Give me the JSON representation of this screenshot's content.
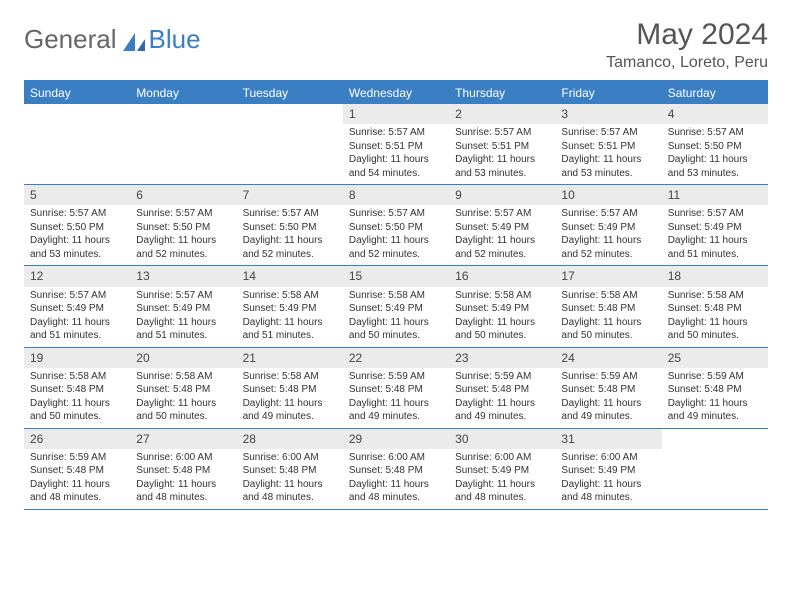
{
  "logo": {
    "text1": "General",
    "text2": "Blue"
  },
  "title": "May 2024",
  "location": "Tamanco, Loreto, Peru",
  "colors": {
    "accent": "#3a7fc4",
    "daynum_bg": "#ebebeb",
    "text": "#333333",
    "header_text": "#555555",
    "white": "#ffffff"
  },
  "weekdays": [
    "Sunday",
    "Monday",
    "Tuesday",
    "Wednesday",
    "Thursday",
    "Friday",
    "Saturday"
  ],
  "weeks": [
    [
      {
        "n": "",
        "sr": "",
        "ss": "",
        "dl": ""
      },
      {
        "n": "",
        "sr": "",
        "ss": "",
        "dl": ""
      },
      {
        "n": "",
        "sr": "",
        "ss": "",
        "dl": ""
      },
      {
        "n": "1",
        "sr": "Sunrise: 5:57 AM",
        "ss": "Sunset: 5:51 PM",
        "dl": "Daylight: 11 hours and 54 minutes."
      },
      {
        "n": "2",
        "sr": "Sunrise: 5:57 AM",
        "ss": "Sunset: 5:51 PM",
        "dl": "Daylight: 11 hours and 53 minutes."
      },
      {
        "n": "3",
        "sr": "Sunrise: 5:57 AM",
        "ss": "Sunset: 5:51 PM",
        "dl": "Daylight: 11 hours and 53 minutes."
      },
      {
        "n": "4",
        "sr": "Sunrise: 5:57 AM",
        "ss": "Sunset: 5:50 PM",
        "dl": "Daylight: 11 hours and 53 minutes."
      }
    ],
    [
      {
        "n": "5",
        "sr": "Sunrise: 5:57 AM",
        "ss": "Sunset: 5:50 PM",
        "dl": "Daylight: 11 hours and 53 minutes."
      },
      {
        "n": "6",
        "sr": "Sunrise: 5:57 AM",
        "ss": "Sunset: 5:50 PM",
        "dl": "Daylight: 11 hours and 52 minutes."
      },
      {
        "n": "7",
        "sr": "Sunrise: 5:57 AM",
        "ss": "Sunset: 5:50 PM",
        "dl": "Daylight: 11 hours and 52 minutes."
      },
      {
        "n": "8",
        "sr": "Sunrise: 5:57 AM",
        "ss": "Sunset: 5:50 PM",
        "dl": "Daylight: 11 hours and 52 minutes."
      },
      {
        "n": "9",
        "sr": "Sunrise: 5:57 AM",
        "ss": "Sunset: 5:49 PM",
        "dl": "Daylight: 11 hours and 52 minutes."
      },
      {
        "n": "10",
        "sr": "Sunrise: 5:57 AM",
        "ss": "Sunset: 5:49 PM",
        "dl": "Daylight: 11 hours and 52 minutes."
      },
      {
        "n": "11",
        "sr": "Sunrise: 5:57 AM",
        "ss": "Sunset: 5:49 PM",
        "dl": "Daylight: 11 hours and 51 minutes."
      }
    ],
    [
      {
        "n": "12",
        "sr": "Sunrise: 5:57 AM",
        "ss": "Sunset: 5:49 PM",
        "dl": "Daylight: 11 hours and 51 minutes."
      },
      {
        "n": "13",
        "sr": "Sunrise: 5:57 AM",
        "ss": "Sunset: 5:49 PM",
        "dl": "Daylight: 11 hours and 51 minutes."
      },
      {
        "n": "14",
        "sr": "Sunrise: 5:58 AM",
        "ss": "Sunset: 5:49 PM",
        "dl": "Daylight: 11 hours and 51 minutes."
      },
      {
        "n": "15",
        "sr": "Sunrise: 5:58 AM",
        "ss": "Sunset: 5:49 PM",
        "dl": "Daylight: 11 hours and 50 minutes."
      },
      {
        "n": "16",
        "sr": "Sunrise: 5:58 AM",
        "ss": "Sunset: 5:49 PM",
        "dl": "Daylight: 11 hours and 50 minutes."
      },
      {
        "n": "17",
        "sr": "Sunrise: 5:58 AM",
        "ss": "Sunset: 5:48 PM",
        "dl": "Daylight: 11 hours and 50 minutes."
      },
      {
        "n": "18",
        "sr": "Sunrise: 5:58 AM",
        "ss": "Sunset: 5:48 PM",
        "dl": "Daylight: 11 hours and 50 minutes."
      }
    ],
    [
      {
        "n": "19",
        "sr": "Sunrise: 5:58 AM",
        "ss": "Sunset: 5:48 PM",
        "dl": "Daylight: 11 hours and 50 minutes."
      },
      {
        "n": "20",
        "sr": "Sunrise: 5:58 AM",
        "ss": "Sunset: 5:48 PM",
        "dl": "Daylight: 11 hours and 50 minutes."
      },
      {
        "n": "21",
        "sr": "Sunrise: 5:58 AM",
        "ss": "Sunset: 5:48 PM",
        "dl": "Daylight: 11 hours and 49 minutes."
      },
      {
        "n": "22",
        "sr": "Sunrise: 5:59 AM",
        "ss": "Sunset: 5:48 PM",
        "dl": "Daylight: 11 hours and 49 minutes."
      },
      {
        "n": "23",
        "sr": "Sunrise: 5:59 AM",
        "ss": "Sunset: 5:48 PM",
        "dl": "Daylight: 11 hours and 49 minutes."
      },
      {
        "n": "24",
        "sr": "Sunrise: 5:59 AM",
        "ss": "Sunset: 5:48 PM",
        "dl": "Daylight: 11 hours and 49 minutes."
      },
      {
        "n": "25",
        "sr": "Sunrise: 5:59 AM",
        "ss": "Sunset: 5:48 PM",
        "dl": "Daylight: 11 hours and 49 minutes."
      }
    ],
    [
      {
        "n": "26",
        "sr": "Sunrise: 5:59 AM",
        "ss": "Sunset: 5:48 PM",
        "dl": "Daylight: 11 hours and 48 minutes."
      },
      {
        "n": "27",
        "sr": "Sunrise: 6:00 AM",
        "ss": "Sunset: 5:48 PM",
        "dl": "Daylight: 11 hours and 48 minutes."
      },
      {
        "n": "28",
        "sr": "Sunrise: 6:00 AM",
        "ss": "Sunset: 5:48 PM",
        "dl": "Daylight: 11 hours and 48 minutes."
      },
      {
        "n": "29",
        "sr": "Sunrise: 6:00 AM",
        "ss": "Sunset: 5:48 PM",
        "dl": "Daylight: 11 hours and 48 minutes."
      },
      {
        "n": "30",
        "sr": "Sunrise: 6:00 AM",
        "ss": "Sunset: 5:49 PM",
        "dl": "Daylight: 11 hours and 48 minutes."
      },
      {
        "n": "31",
        "sr": "Sunrise: 6:00 AM",
        "ss": "Sunset: 5:49 PM",
        "dl": "Daylight: 11 hours and 48 minutes."
      },
      {
        "n": "",
        "sr": "",
        "ss": "",
        "dl": ""
      }
    ]
  ]
}
